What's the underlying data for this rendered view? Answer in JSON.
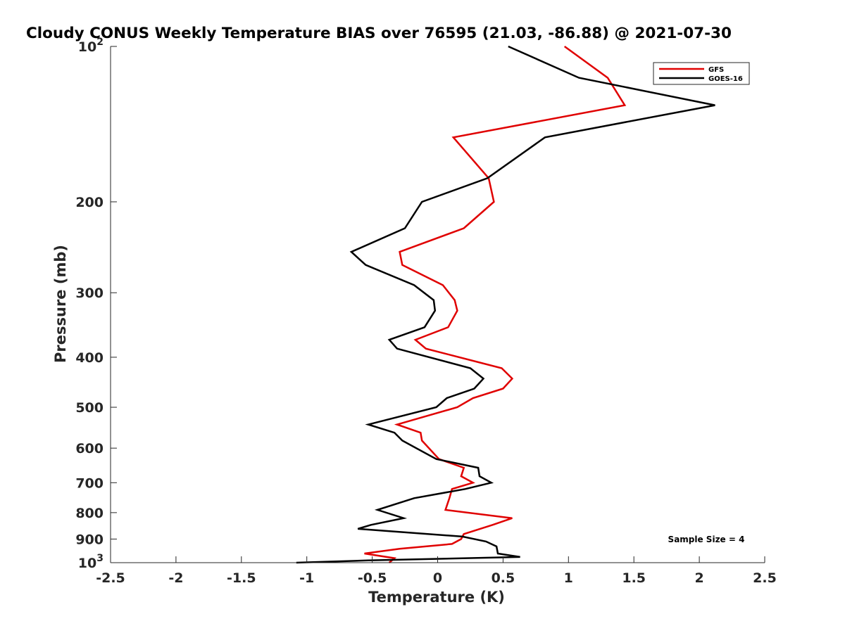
{
  "chart_data": {
    "type": "line",
    "title": "Cloudy CONUS Weekly Temperature BIAS over 76595 (21.03, -86.88) @ 2021-07-30",
    "xlabel": "Temperature (K)",
    "ylabel": "Pressure (mb)",
    "xlim": [
      -2.5,
      2.5
    ],
    "ylim": [
      100,
      1000
    ],
    "y_scale": "log",
    "y_reversed": true,
    "grid": false,
    "x_ticks": [
      -2.5,
      -2,
      -1.5,
      -1,
      -0.5,
      0,
      0.5,
      1,
      1.5,
      2,
      2.5
    ],
    "x_tick_labels": [
      "-2.5",
      "-2",
      "-1.5",
      "-1",
      "-0.5",
      "0",
      "0.5",
      "1",
      "1.5",
      "2",
      "2.5"
    ],
    "y_ticks": [
      100,
      200,
      300,
      400,
      500,
      600,
      700,
      800,
      900,
      1000
    ],
    "y_tick_labels": [
      {
        "base": "10",
        "exp": "2"
      },
      {
        "base": "200",
        "exp": ""
      },
      {
        "base": "300",
        "exp": ""
      },
      {
        "base": "400",
        "exp": ""
      },
      {
        "base": "500",
        "exp": ""
      },
      {
        "base": "600",
        "exp": ""
      },
      {
        "base": "700",
        "exp": ""
      },
      {
        "base": "800",
        "exp": ""
      },
      {
        "base": "900",
        "exp": ""
      },
      {
        "base": "10",
        "exp": "3"
      }
    ],
    "legend_position": "top-right",
    "annotation": "Sample Size = 4",
    "series": [
      {
        "name": "GFS",
        "color": "#e00000",
        "points": [
          [
            0.97,
            100
          ],
          [
            1.3,
            115
          ],
          [
            1.43,
            130
          ],
          [
            0.12,
            150
          ],
          [
            0.39,
            180
          ],
          [
            0.43,
            200
          ],
          [
            0.2,
            225
          ],
          [
            -0.29,
            250
          ],
          [
            -0.27,
            265
          ],
          [
            0.04,
            290
          ],
          [
            0.13,
            310
          ],
          [
            0.15,
            325
          ],
          [
            0.08,
            350
          ],
          [
            -0.17,
            370
          ],
          [
            -0.09,
            385
          ],
          [
            0.49,
            420
          ],
          [
            0.57,
            440
          ],
          [
            0.5,
            460
          ],
          [
            0.27,
            480
          ],
          [
            0.15,
            500
          ],
          [
            -0.31,
            540
          ],
          [
            -0.13,
            560
          ],
          [
            -0.12,
            580
          ],
          [
            0.01,
            630
          ],
          [
            0.2,
            655
          ],
          [
            0.18,
            680
          ],
          [
            0.27,
            700
          ],
          [
            0.11,
            720
          ],
          [
            0.09,
            750
          ],
          [
            0.06,
            790
          ],
          [
            0.57,
            820
          ],
          [
            0.42,
            845
          ],
          [
            0.2,
            880
          ],
          [
            0.18,
            900
          ],
          [
            0.11,
            920
          ],
          [
            -0.29,
            940
          ],
          [
            -0.56,
            960
          ],
          [
            -0.33,
            980
          ],
          [
            -0.37,
            1000
          ]
        ]
      },
      {
        "name": "GOES-16",
        "color": "#000000",
        "points": [
          [
            0.54,
            100
          ],
          [
            1.08,
            115
          ],
          [
            2.12,
            130
          ],
          [
            0.82,
            150
          ],
          [
            0.38,
            180
          ],
          [
            -0.12,
            200
          ],
          [
            -0.25,
            225
          ],
          [
            -0.66,
            250
          ],
          [
            -0.55,
            265
          ],
          [
            -0.18,
            290
          ],
          [
            -0.03,
            310
          ],
          [
            -0.02,
            325
          ],
          [
            -0.1,
            350
          ],
          [
            -0.37,
            370
          ],
          [
            -0.31,
            385
          ],
          [
            0.25,
            420
          ],
          [
            0.35,
            440
          ],
          [
            0.28,
            460
          ],
          [
            0.07,
            480
          ],
          [
            -0.01,
            500
          ],
          [
            -0.53,
            540
          ],
          [
            -0.33,
            560
          ],
          [
            -0.27,
            580
          ],
          [
            -0.01,
            630
          ],
          [
            0.31,
            655
          ],
          [
            0.32,
            680
          ],
          [
            0.41,
            700
          ],
          [
            0.21,
            720
          ],
          [
            -0.18,
            750
          ],
          [
            -0.46,
            790
          ],
          [
            -0.26,
            820
          ],
          [
            -0.51,
            845
          ],
          [
            -0.61,
            860
          ],
          [
            0.19,
            890
          ],
          [
            0.37,
            910
          ],
          [
            0.45,
            930
          ],
          [
            0.46,
            960
          ],
          [
            0.63,
            975
          ],
          [
            -0.53,
            990
          ],
          [
            -1.08,
            1000
          ]
        ]
      }
    ]
  }
}
